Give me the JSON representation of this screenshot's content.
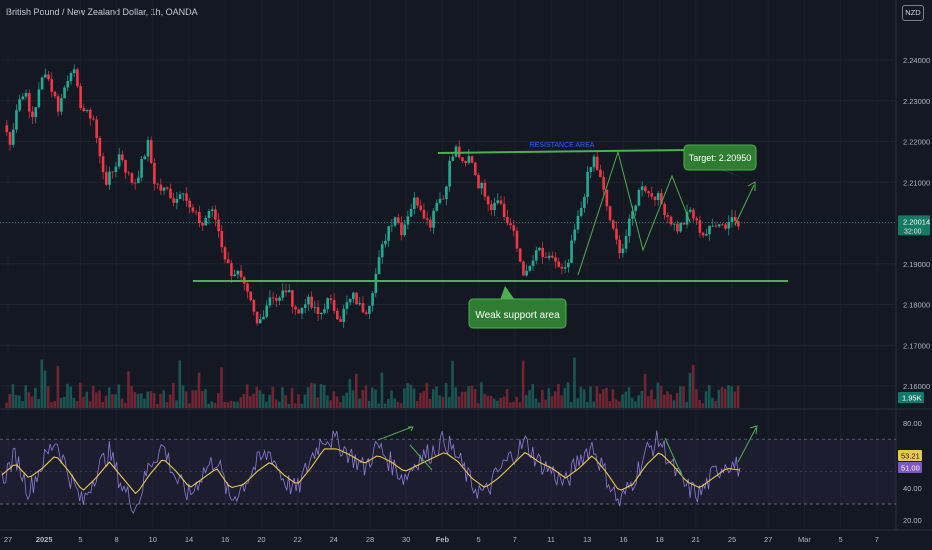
{
  "header": {
    "symbol_title": "British Pound / New Zealand Dollar, 1h, OANDA",
    "currency_label": "NZD"
  },
  "chart_data": [
    {
      "type": "candlestick",
      "interval": "1h",
      "ylim": [
        2.155,
        2.248
      ],
      "y_ticks": [
        "2.24000",
        "2.23000",
        "2.22000",
        "2.21000",
        "2.20000",
        "2.19000",
        "2.18000",
        "2.17000",
        "2.16000"
      ],
      "x_tick_labels": [
        "27",
        "2025",
        "5",
        "8",
        "10",
        "14",
        "16",
        "20",
        "22",
        "24",
        "28",
        "30",
        "Feb",
        "5",
        "7",
        "11",
        "13",
        "16",
        "18",
        "21",
        "25",
        "27",
        "Mar",
        "5",
        "7"
      ],
      "price_path": [
        [
          2.224,
          2.22,
          2.229,
          2.233,
          2.225,
          2.231,
          2.238,
          2.233,
          2.228,
          2.234,
          2.239,
          2.23,
          2.2265
        ],
        [
          2.2265,
          2.216,
          2.21,
          2.213,
          2.2175,
          2.212,
          2.2095,
          2.214,
          2.2195,
          2.21,
          2.208
        ],
        [
          2.208,
          2.205,
          2.2095,
          2.2035,
          2.2015,
          2.1995,
          2.2035,
          2.2005,
          2.193,
          2.188
        ],
        [
          2.188,
          2.184,
          2.18,
          2.1745,
          2.179,
          2.183,
          2.1805,
          2.184,
          2.181,
          2.1775,
          2.1815,
          2.179,
          2.177,
          2.181,
          2.1795,
          2.1765,
          2.18,
          2.182,
          2.179
        ],
        [
          2.179,
          2.186,
          2.193,
          2.199,
          2.202,
          2.198,
          2.203,
          2.206,
          2.2035,
          2.199,
          2.206
        ],
        [
          2.206,
          2.215,
          2.2185,
          2.213,
          2.217,
          2.21,
          2.208,
          2.204,
          2.207,
          2.201
        ],
        [
          2.199,
          2.192,
          2.1865,
          2.1905,
          2.1935,
          2.19,
          2.192,
          2.188
        ],
        [
          2.188,
          2.197,
          2.203,
          2.211,
          2.216,
          2.21,
          2.203,
          2.196,
          2.193,
          2.199,
          2.205,
          2.21,
          2.207
        ],
        [
          2.207,
          2.204,
          2.201,
          2.1985,
          2.2,
          2.203,
          2.1995,
          2.197,
          2.1985,
          2.201,
          2.199,
          2.2015,
          2.2005
        ]
      ],
      "volume_label": "1.95K"
    },
    {
      "type": "line",
      "indicator": "RSI",
      "ylim": [
        15,
        90
      ],
      "y_ticks": [
        "80.00",
        "60.00",
        "40.00",
        "20.00"
      ],
      "bands": [
        70,
        30
      ],
      "series": [
        {
          "values": [
            45,
            60,
            38,
            55,
            70,
            48,
            30,
            50,
            62,
            40,
            28,
            55,
            66,
            45,
            35,
            50,
            58,
            32,
            42,
            55,
            62,
            45,
            38,
            58,
            72,
            68,
            60,
            52,
            66,
            55,
            46,
            58,
            62,
            70,
            58,
            42,
            36,
            50,
            60,
            68,
            56,
            50,
            42,
            58,
            66,
            48,
            30,
            44,
            62,
            70,
            52,
            40,
            36,
            48,
            56,
            52
          ],
          "color": "#8f7bd8"
        },
        {
          "values": [
            48,
            55,
            46,
            52,
            60,
            50,
            38,
            46,
            56,
            46,
            36,
            48,
            58,
            50,
            40,
            46,
            52,
            40,
            42,
            50,
            56,
            48,
            42,
            52,
            64,
            64,
            60,
            55,
            60,
            56,
            50,
            54,
            58,
            62,
            56,
            46,
            40,
            46,
            54,
            62,
            56,
            52,
            46,
            52,
            60,
            50,
            38,
            42,
            54,
            62,
            54,
            44,
            40,
            46,
            52,
            51
          ],
          "color": "#e9c84a"
        }
      ]
    }
  ],
  "price_labels": {
    "last_price": "2.20014",
    "countdown": "32:00",
    "rsi_value": "53.21",
    "rsi_ma_value": "51.00"
  },
  "annotations": {
    "resistance_label": "RESISTANCE AREA",
    "target_label": "Target: 2.20950",
    "support_label": "Weak support area"
  },
  "colors": {
    "up": "#22ab94",
    "down": "#f23645",
    "drawing": "#4caf50",
    "rsi": "#8f7bd8",
    "rsi_ma": "#e9c84a",
    "resistance_text": "#2962ff",
    "last_price_bg": "#147a62"
  }
}
